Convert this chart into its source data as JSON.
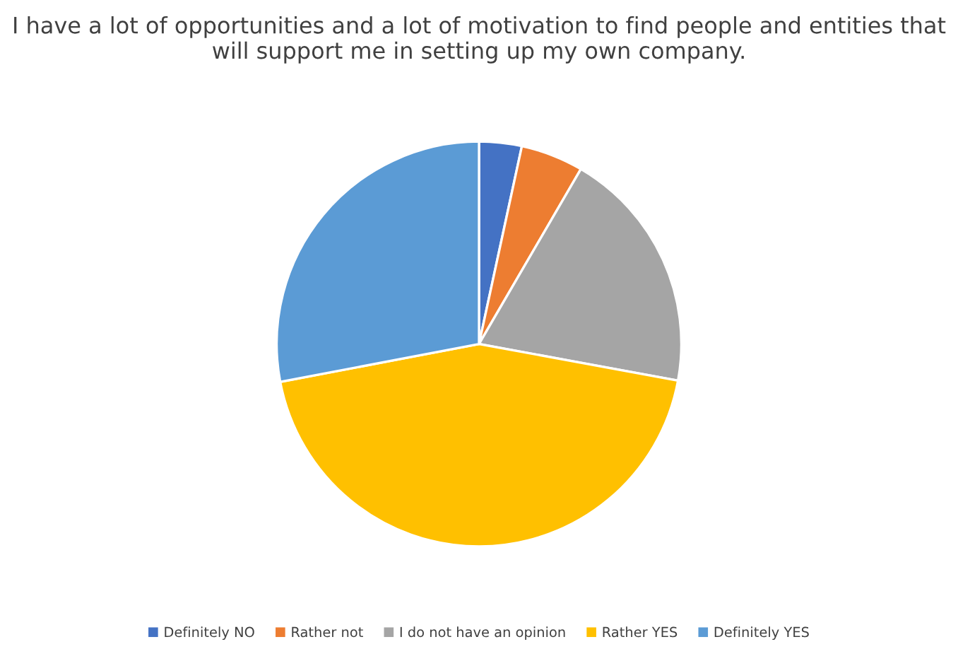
{
  "chart_data": {
    "type": "pie",
    "title": "I have a lot of opportunities and a lot of motivation to find people and entities that will support me in setting up my own company.",
    "categories": [
      "Definitely NO",
      "Rather not",
      "I do not have an opinion",
      "Rather YES",
      "Definitely YES"
    ],
    "values": [
      3.4,
      5,
      19.5,
      44.1,
      28
    ],
    "colors": [
      "#4472c4",
      "#ed7d31",
      "#a5a5a5",
      "#ffc000",
      "#5b9bd5"
    ],
    "legend": "bottom"
  }
}
